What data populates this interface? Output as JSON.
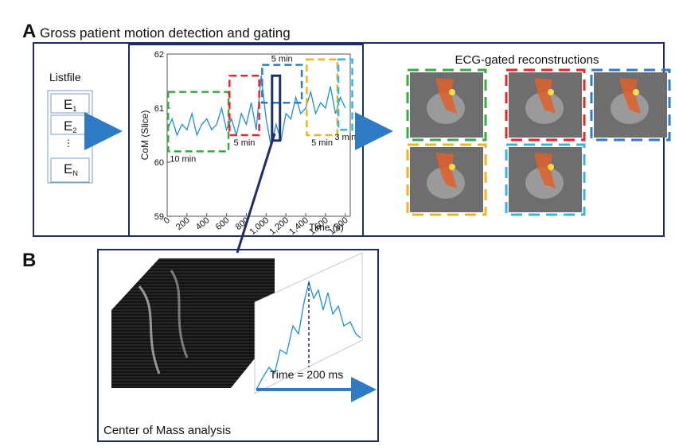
{
  "panel_a": {
    "label": "A",
    "title": "Gross patient motion detection and gating",
    "listfile": {
      "title": "Listfile",
      "events": [
        {
          "main": "E",
          "sub": "1"
        },
        {
          "main": "E",
          "sub": "2"
        },
        {
          "main": "⋮",
          "sub": ""
        },
        {
          "main": "E",
          "sub": "N"
        }
      ]
    },
    "chart": {
      "type": "line",
      "xlabel": "Time (s)",
      "ylabel": "CoM (Slice)",
      "xlim": [
        0,
        1850
      ],
      "ylim": [
        59,
        62
      ],
      "yticks": [
        59,
        60,
        61,
        62
      ],
      "xticks": [
        0,
        200,
        400,
        600,
        800,
        {
          "value": 1000,
          "label": "1,000"
        },
        {
          "value": 1200,
          "label": "1,200"
        },
        {
          "value": 1400,
          "label": "1,400"
        },
        {
          "value": 1600,
          "label": "1,600"
        },
        {
          "value": 1800,
          "label": "1,800"
        }
      ],
      "color": "#1f8fd0",
      "x": [
        0,
        50,
        100,
        150,
        200,
        250,
        300,
        350,
        400,
        450,
        500,
        550,
        600,
        650,
        700,
        750,
        800,
        850,
        900,
        950,
        1000,
        1050,
        1100,
        1150,
        1200,
        1250,
        1300,
        1350,
        1400,
        1450,
        1500,
        1550,
        1600,
        1650,
        1700,
        1750,
        1800
      ],
      "values": [
        60.6,
        60.8,
        60.5,
        60.7,
        60.6,
        60.9,
        60.5,
        60.7,
        60.8,
        60.6,
        60.7,
        61.0,
        60.6,
        60.8,
        60.5,
        60.9,
        60.7,
        61.1,
        60.6,
        61.6,
        60.8,
        60.3,
        60.7,
        60.4,
        60.9,
        60.8,
        61.2,
        60.9,
        61.0,
        61.3,
        60.9,
        61.1,
        61.0,
        61.4,
        60.9,
        61.2,
        61.0
      ],
      "windows": [
        {
          "label": "10 min",
          "color": "#3aa845",
          "start": 10,
          "end": 620,
          "ylow": 60.2,
          "yhigh": 61.3
        },
        {
          "label": "5 min",
          "color": "#e8262a",
          "start": 630,
          "end": 930,
          "ylow": 60.5,
          "yhigh": 61.6
        },
        {
          "label": "5 min",
          "color": "#2e7bc4",
          "start": 960,
          "end": 1360,
          "ylow": 61.1,
          "yhigh": 61.8
        },
        {
          "label": "5 min",
          "color": "#f0b323",
          "start": 1410,
          "end": 1720,
          "ylow": 60.5,
          "yhigh": 61.9
        },
        {
          "label": "3 min",
          "color": "#35b4e6",
          "start": 1730,
          "end": 1870,
          "ylow": 60.6,
          "yhigh": 61.9
        }
      ],
      "selection": {
        "start": 1060,
        "end": 1140,
        "ylow": 60.4,
        "yhigh": 61.6,
        "color": "#1f2d6b"
      }
    },
    "reconstructions": {
      "title": "ECG-gated reconstructions"
    }
  },
  "panel_b": {
    "label": "B",
    "time_label": "Time = 200 ms",
    "caption": "Center of Mass analysis"
  }
}
